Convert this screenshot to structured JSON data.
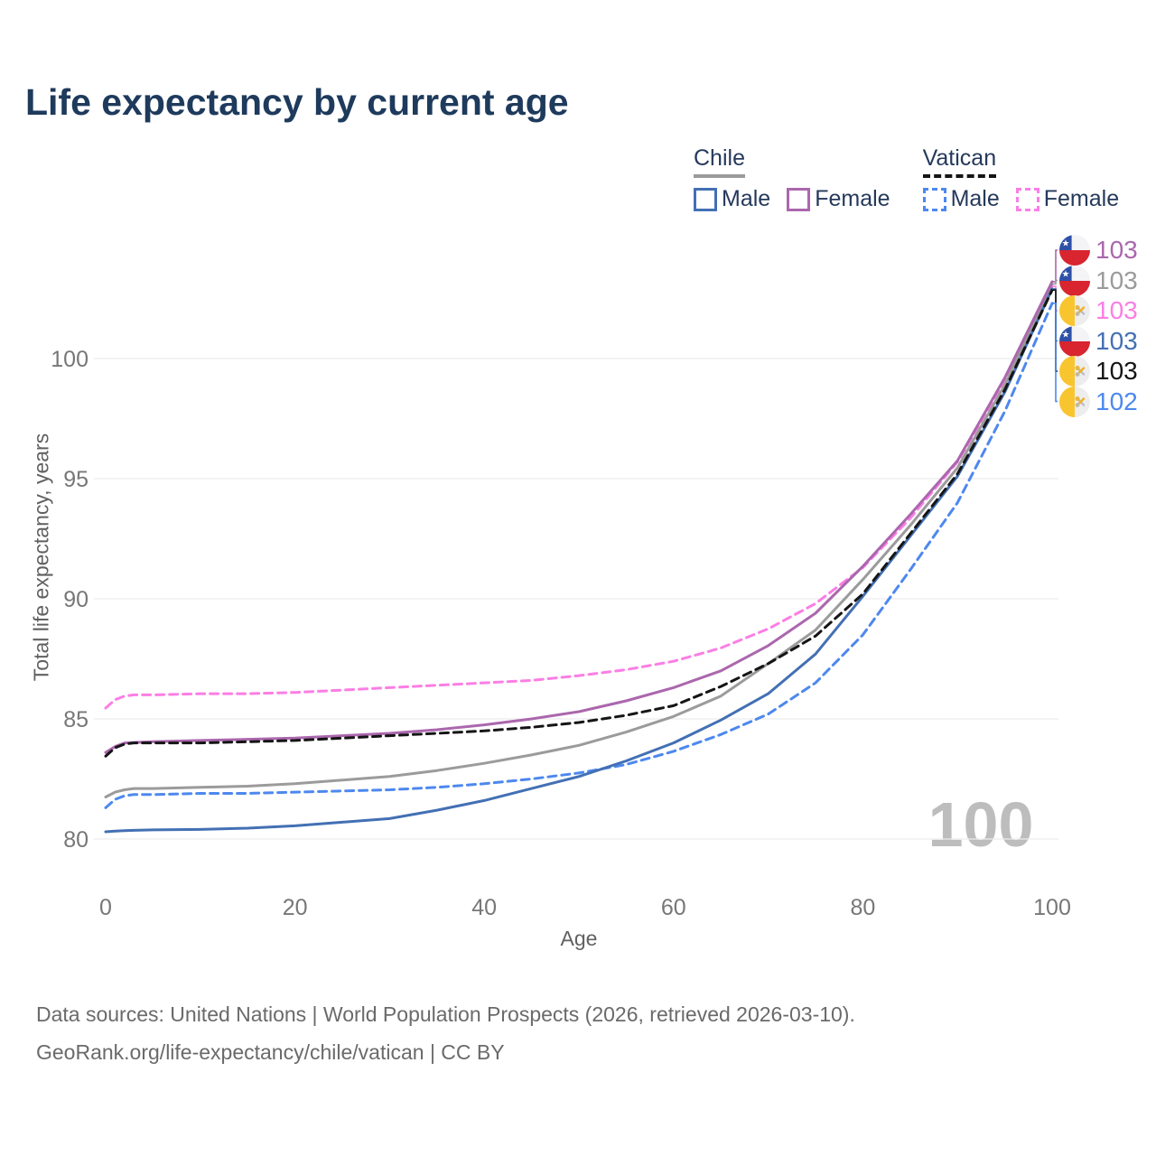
{
  "title": "Life expectancy by current age",
  "legend": {
    "groups": [
      {
        "label": "Chile",
        "underline_series": "chile_total",
        "items": [
          {
            "label": "Male",
            "series": "chile_male"
          },
          {
            "label": "Female",
            "series": "chile_female"
          }
        ]
      },
      {
        "label": "Vatican",
        "underline_series": "vatican_total",
        "items": [
          {
            "label": "Male",
            "series": "vatican_male"
          },
          {
            "label": "Female",
            "series": "vatican_female"
          }
        ]
      }
    ]
  },
  "watermark": "100",
  "footer": {
    "line1": "Data sources: United Nations | World Population Prospects (2026, retrieved 2026-03-10).",
    "line2": "GeoRank.org/life-expectancy/chile/vatican | CC BY"
  },
  "chart_data": {
    "type": "line",
    "title": "Life expectancy by current age",
    "xlabel": "Age",
    "ylabel": "Total life expectancy, years",
    "xlim": [
      0,
      100
    ],
    "ylim": [
      78.5,
      104
    ],
    "xticks": [
      0,
      20,
      40,
      60,
      80,
      100
    ],
    "yticks": [
      80,
      85,
      90,
      95,
      100
    ],
    "grid": "horizontal",
    "gridline_color": "#ececec",
    "tick_color": "#777777",
    "x": [
      0,
      1,
      2,
      3,
      5,
      10,
      15,
      20,
      25,
      30,
      35,
      40,
      45,
      50,
      55,
      60,
      65,
      70,
      75,
      80,
      85,
      90,
      95,
      100
    ],
    "series": [
      {
        "key": "chile_female",
        "name": "Chile Female",
        "color": "#ab67ad",
        "dash": false,
        "flag": "chile",
        "end_label": "103",
        "values": [
          83.6,
          83.85,
          84.0,
          84.02,
          84.05,
          84.1,
          84.15,
          84.2,
          84.3,
          84.4,
          84.55,
          84.75,
          85.0,
          85.3,
          85.75,
          86.3,
          87.0,
          88.05,
          89.4,
          91.35,
          93.5,
          95.75,
          99.2,
          103.2
        ]
      },
      {
        "key": "chile_total",
        "name": "Chile Total",
        "color": "#9b9b9b",
        "dash": false,
        "flag": "chile",
        "end_label": "103",
        "values": [
          81.75,
          81.95,
          82.05,
          82.1,
          82.1,
          82.15,
          82.2,
          82.3,
          82.45,
          82.6,
          82.85,
          83.15,
          83.5,
          83.9,
          84.45,
          85.1,
          85.95,
          87.3,
          88.7,
          90.8,
          93.05,
          95.45,
          98.9,
          103.1
        ]
      },
      {
        "key": "vatican_female",
        "name": "Vatican Female",
        "color": "#fb7ee5",
        "dash": true,
        "flag": "vatican",
        "end_label": "103",
        "values": [
          85.45,
          85.8,
          85.95,
          86.0,
          86.0,
          86.05,
          86.05,
          86.1,
          86.2,
          86.3,
          86.4,
          86.5,
          86.6,
          86.8,
          87.05,
          87.4,
          87.95,
          88.75,
          89.8,
          91.3,
          93.35,
          95.7,
          99.1,
          103.0
        ]
      },
      {
        "key": "chile_male",
        "name": "Chile Male",
        "color": "#4370b4",
        "dash": false,
        "flag": "chile",
        "end_label": "103",
        "values": [
          80.3,
          80.33,
          80.35,
          80.36,
          80.38,
          80.4,
          80.45,
          80.55,
          80.7,
          80.85,
          81.2,
          81.6,
          82.1,
          82.6,
          83.25,
          84.0,
          84.95,
          86.05,
          87.7,
          90.1,
          92.6,
          95.1,
          98.6,
          102.9
        ]
      },
      {
        "key": "vatican_total",
        "name": "Vatican Total",
        "color": "#151515",
        "dash": true,
        "flag": "vatican",
        "end_label": "103",
        "values": [
          83.45,
          83.8,
          83.95,
          84.0,
          84.0,
          84.0,
          84.05,
          84.1,
          84.2,
          84.3,
          84.4,
          84.5,
          84.65,
          84.85,
          85.15,
          85.55,
          86.35,
          87.3,
          88.45,
          90.2,
          92.7,
          95.2,
          98.7,
          102.85
        ]
      },
      {
        "key": "vatican_male",
        "name": "Vatican Male",
        "color": "#4d88ee",
        "dash": true,
        "flag": "vatican",
        "end_label": "102",
        "values": [
          81.3,
          81.65,
          81.8,
          81.85,
          81.85,
          81.9,
          81.9,
          81.95,
          82.0,
          82.05,
          82.15,
          82.3,
          82.5,
          82.75,
          83.1,
          83.65,
          84.35,
          85.2,
          86.5,
          88.5,
          91.2,
          94.0,
          97.8,
          102.3
        ]
      }
    ],
    "legend_position": "top-right"
  }
}
